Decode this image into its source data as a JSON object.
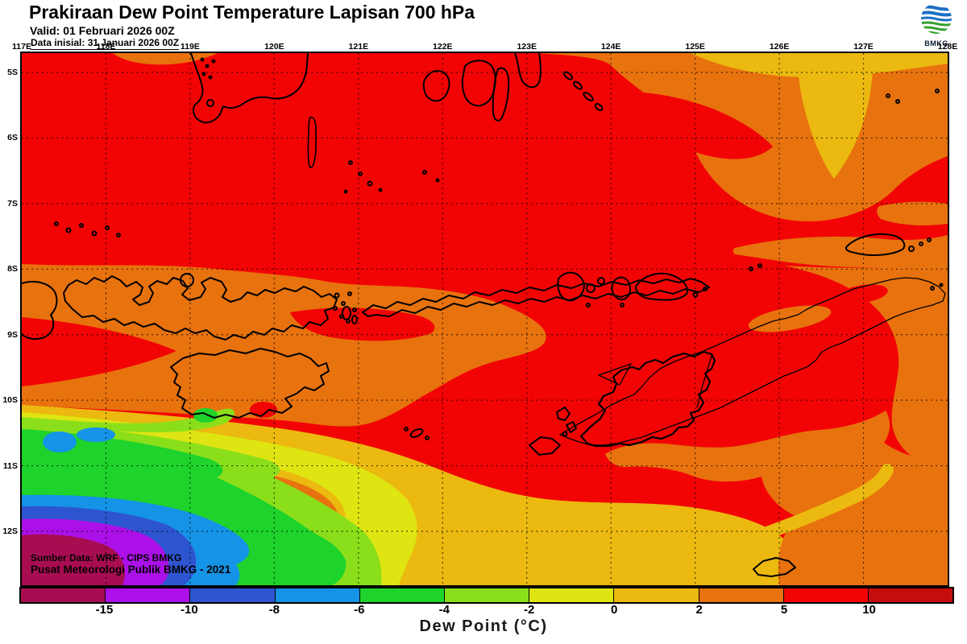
{
  "header": {
    "title": "Prakiraan Dew Point Temperature Lapisan 700 hPa",
    "valid": "Valid: 01 Februari 2026 00Z",
    "init": "Data inisial: 31 Januari 2026 00Z"
  },
  "logo": {
    "label": "BMKG"
  },
  "map": {
    "lon_labels": [
      "117E",
      "118E",
      "119E",
      "120E",
      "121E",
      "122E",
      "123E",
      "124E",
      "125E",
      "126E",
      "127E",
      "128E"
    ],
    "lat_labels": [
      "5S",
      "6S",
      "7S",
      "8S",
      "9S",
      "10S",
      "11S",
      "12S"
    ],
    "source_line1": "Sumber Data: WRF - CIPS BMKG",
    "source_line2": "Pusat Meteorologi Publik BMKG - 2021"
  },
  "colorbar": {
    "title": "Dew Point (°C)",
    "tick_labels": [
      "-15",
      "-10",
      "-8",
      "-6",
      "-4",
      "-2",
      "0",
      "2",
      "5",
      "10"
    ],
    "segments": [
      {
        "range": "< -15",
        "color": "#A80D52"
      },
      {
        "range": "-15 to -10",
        "color": "#AB10E8"
      },
      {
        "range": "-10 to -8",
        "color": "#2E55D0"
      },
      {
        "range": "-8 to -6",
        "color": "#1593E6"
      },
      {
        "range": "-6 to -4",
        "color": "#1ED32B"
      },
      {
        "range": "-4 to -2",
        "color": "#8ADF1A"
      },
      {
        "range": "-2 to 0",
        "color": "#DEE512"
      },
      {
        "range": "0 to 2",
        "color": "#EBB90F"
      },
      {
        "range": "2 to 5",
        "color": "#E8720E"
      },
      {
        "range": "5 to 10",
        "color": "#F20404"
      },
      {
        "range": "> 10",
        "color": "#C60D0D"
      }
    ]
  },
  "chart_data": {
    "type": "heatmap",
    "title": "Prakiraan Dew Point Temperature Lapisan 700 hPa",
    "variable": "Dew Point (°C)",
    "contour_levels": [
      -15,
      -10,
      -8,
      -6,
      -4,
      -2,
      0,
      2,
      5,
      10
    ],
    "lon_range": [
      "117E",
      "128E"
    ],
    "lat_range": [
      "5S",
      "12S"
    ],
    "legend_position": "bottom",
    "grid": "dotted",
    "field_notes": "Mostly 5-10 C (red) across the domain; 2-5 C (orange) bands along 8-10S and upper-right; cold pool below -15 C (magenta/purple core) in the south-west corner with concentric -10..0 C rings; yellow 0-2 C bands along the southern edge"
  },
  "palette": {
    "red": "#F20404",
    "darkred": "#C60D0D",
    "orange": "#E8720E",
    "golden": "#EBB90F",
    "yellow": "#DEE512",
    "yellowgreen": "#8ADF1A",
    "green": "#1ED32B",
    "ltblue": "#1593E6",
    "blue": "#2E55D0",
    "purple": "#AB10E8",
    "magenta": "#A80D52",
    "coast": "#000000",
    "logo_blue": "#1a6fc4",
    "logo_green": "#35a02e"
  }
}
